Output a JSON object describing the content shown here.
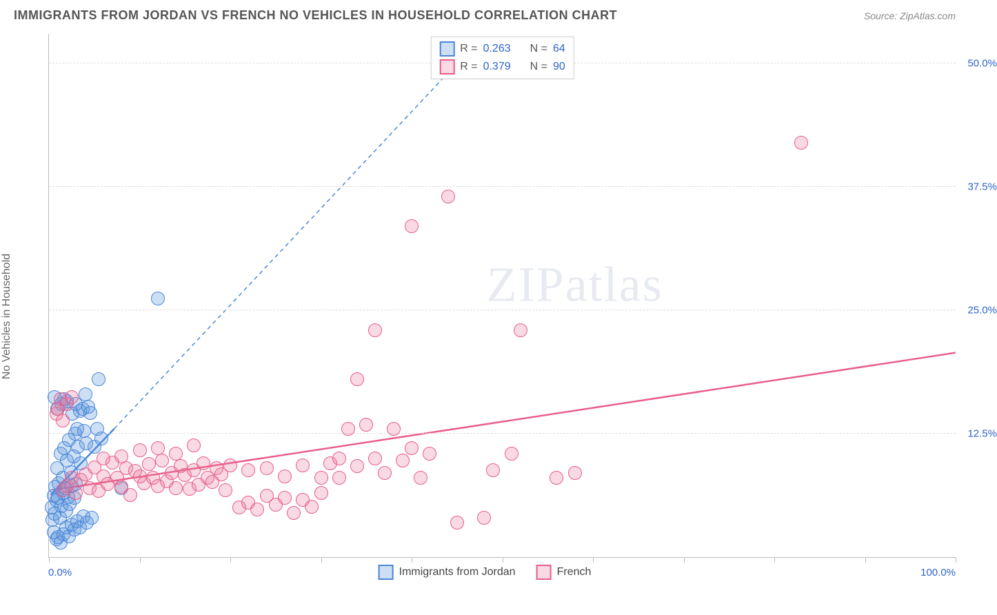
{
  "title": "IMMIGRANTS FROM JORDAN VS FRENCH NO VEHICLES IN HOUSEHOLD CORRELATION CHART",
  "source_label": "Source: ",
  "source_name": "ZipAtlas.com",
  "ylabel": "No Vehicles in Household",
  "watermark_a": "ZIP",
  "watermark_b": "atlas",
  "chart": {
    "type": "scatter",
    "xlim": [
      0,
      100
    ],
    "ylim": [
      0,
      53
    ],
    "xticks_pct": [
      0,
      10,
      20,
      30,
      40,
      50,
      60,
      70,
      80,
      90,
      100
    ],
    "ygrid": [
      {
        "v": 12.5,
        "label": "12.5%"
      },
      {
        "v": 25.0,
        "label": "25.0%"
      },
      {
        "v": 37.5,
        "label": "37.5%"
      },
      {
        "v": 50.0,
        "label": "50.0%"
      }
    ],
    "xlabel_min": "0.0%",
    "xlabel_max": "100.0%",
    "xlabel_color": "#2e63c9",
    "ylabel_color": "#2e63c9",
    "background_color": "#ffffff",
    "grid_color": "#dddddd",
    "point_radius": 10,
    "point_opacity": 0.35,
    "series": [
      {
        "name": "Immigrants from Jordan",
        "color": "#4a86d8",
        "fill": "rgba(90,150,220,0.30)",
        "stroke": "#4a86d8",
        "r_value": "0.263",
        "n_value": "64",
        "trend": {
          "x1": 0.2,
          "y1": 6.3,
          "x2": 7.2,
          "y2": 13.0,
          "dash_x2": 45,
          "dash_y2": 50,
          "width": 2.5
        },
        "points": [
          [
            0.3,
            5.0
          ],
          [
            0.4,
            3.8
          ],
          [
            0.5,
            6.2
          ],
          [
            0.6,
            4.4
          ],
          [
            0.7,
            7.1
          ],
          [
            0.8,
            5.7
          ],
          [
            0.9,
            9.0
          ],
          [
            1.0,
            6.0
          ],
          [
            1.1,
            7.5
          ],
          [
            1.2,
            4.0
          ],
          [
            1.3,
            10.5
          ],
          [
            1.4,
            5.2
          ],
          [
            1.5,
            8.0
          ],
          [
            1.6,
            6.5
          ],
          [
            1.7,
            11.0
          ],
          [
            1.8,
            7.0
          ],
          [
            1.9,
            4.7
          ],
          [
            2.0,
            9.8
          ],
          [
            2.1,
            6.1
          ],
          [
            2.2,
            11.9
          ],
          [
            2.3,
            5.4
          ],
          [
            2.4,
            8.6
          ],
          [
            2.5,
            7.2
          ],
          [
            2.6,
            14.5
          ],
          [
            2.7,
            10.2
          ],
          [
            2.8,
            6.0
          ],
          [
            2.9,
            12.5
          ],
          [
            3.0,
            7.4
          ],
          [
            3.1,
            13.0
          ],
          [
            3.2,
            11.2
          ],
          [
            3.4,
            14.8
          ],
          [
            3.5,
            9.5
          ],
          [
            3.7,
            15.0
          ],
          [
            3.9,
            12.8
          ],
          [
            4.1,
            11.5
          ],
          [
            4.3,
            15.2
          ],
          [
            4.6,
            14.6
          ],
          [
            5.0,
            11.2
          ],
          [
            5.3,
            13.0
          ],
          [
            5.8,
            12.0
          ],
          [
            0.5,
            2.5
          ],
          [
            0.8,
            1.8
          ],
          [
            1.0,
            2.0
          ],
          [
            1.3,
            1.5
          ],
          [
            1.6,
            2.3
          ],
          [
            1.9,
            3.0
          ],
          [
            2.2,
            2.1
          ],
          [
            2.5,
            3.3
          ],
          [
            2.8,
            2.8
          ],
          [
            3.1,
            3.6
          ],
          [
            3.4,
            3.0
          ],
          [
            3.8,
            4.1
          ],
          [
            4.2,
            3.5
          ],
          [
            4.7,
            4.0
          ],
          [
            1.4,
            15.5
          ],
          [
            2.0,
            15.8
          ],
          [
            0.6,
            16.2
          ],
          [
            0.9,
            15.0
          ],
          [
            1.7,
            16.0
          ],
          [
            12.0,
            26.2
          ],
          [
            5.5,
            18.0
          ],
          [
            4.0,
            16.5
          ],
          [
            3.0,
            15.5
          ],
          [
            8.0,
            7.0
          ]
        ]
      },
      {
        "name": "French",
        "color": "#e85d8a",
        "fill": "rgba(235,120,155,0.28)",
        "stroke": "#e85d8a",
        "r_value": "0.379",
        "n_value": "90",
        "trend": {
          "x1": 0.5,
          "y1": 6.8,
          "x2": 100,
          "y2": 20.7,
          "width": 2.5
        },
        "points": [
          [
            1.5,
            6.8
          ],
          [
            2.0,
            7.2
          ],
          [
            2.5,
            8.0
          ],
          [
            3.0,
            6.5
          ],
          [
            3.5,
            7.8
          ],
          [
            4.0,
            8.4
          ],
          [
            4.5,
            7.0
          ],
          [
            5.0,
            9.1
          ],
          [
            5.5,
            6.7
          ],
          [
            6.0,
            8.2
          ],
          [
            6.5,
            7.4
          ],
          [
            7.0,
            9.6
          ],
          [
            7.5,
            8.0
          ],
          [
            8.0,
            7.1
          ],
          [
            8.5,
            9.0
          ],
          [
            9.0,
            6.3
          ],
          [
            9.5,
            8.7
          ],
          [
            10.0,
            8.2
          ],
          [
            10.5,
            7.5
          ],
          [
            11.0,
            9.4
          ],
          [
            11.5,
            8.0
          ],
          [
            12.0,
            7.2
          ],
          [
            12.5,
            9.8
          ],
          [
            13.0,
            7.7
          ],
          [
            13.5,
            8.5
          ],
          [
            14.0,
            7.0
          ],
          [
            14.5,
            9.2
          ],
          [
            15.0,
            8.3
          ],
          [
            15.5,
            6.9
          ],
          [
            16.0,
            8.8
          ],
          [
            16.5,
            7.3
          ],
          [
            17.0,
            9.5
          ],
          [
            17.5,
            8.0
          ],
          [
            18.0,
            7.6
          ],
          [
            18.5,
            9.0
          ],
          [
            19.0,
            8.4
          ],
          [
            19.5,
            6.8
          ],
          [
            20.0,
            9.3
          ],
          [
            21.0,
            5.0
          ],
          [
            22.0,
            5.5
          ],
          [
            23.0,
            4.8
          ],
          [
            24.0,
            6.2
          ],
          [
            25.0,
            5.3
          ],
          [
            26.0,
            6.0
          ],
          [
            27.0,
            4.5
          ],
          [
            28.0,
            5.8
          ],
          [
            29.0,
            5.1
          ],
          [
            30.0,
            6.5
          ],
          [
            31.0,
            9.5
          ],
          [
            32.0,
            8.0
          ],
          [
            33.0,
            13.0
          ],
          [
            34.0,
            9.2
          ],
          [
            35.0,
            13.4
          ],
          [
            36.0,
            10.0
          ],
          [
            37.0,
            8.5
          ],
          [
            38.0,
            13.0
          ],
          [
            39.0,
            9.8
          ],
          [
            40.0,
            11.0
          ],
          [
            41.0,
            8.0
          ],
          [
            42.0,
            10.5
          ],
          [
            22.0,
            8.8
          ],
          [
            24.0,
            9.0
          ],
          [
            26.0,
            8.2
          ],
          [
            28.0,
            9.3
          ],
          [
            30.0,
            8.0
          ],
          [
            32.0,
            10.0
          ],
          [
            34.0,
            18.0
          ],
          [
            36.0,
            23.0
          ],
          [
            44.0,
            36.5
          ],
          [
            45.0,
            3.5
          ],
          [
            48.0,
            4.0
          ],
          [
            49.0,
            8.8
          ],
          [
            40.0,
            33.5
          ],
          [
            52.0,
            23.0
          ],
          [
            56.0,
            8.0
          ],
          [
            58.0,
            8.5
          ],
          [
            51.0,
            10.5
          ],
          [
            83.0,
            42.0
          ],
          [
            1.0,
            15.0
          ],
          [
            1.3,
            16.0
          ],
          [
            0.8,
            14.5
          ],
          [
            1.5,
            13.8
          ],
          [
            2.0,
            15.5
          ],
          [
            2.5,
            16.2
          ],
          [
            6.0,
            10.0
          ],
          [
            8.0,
            10.2
          ],
          [
            10.0,
            10.8
          ],
          [
            12.0,
            11.0
          ],
          [
            14.0,
            10.5
          ],
          [
            16.0,
            11.3
          ]
        ]
      }
    ],
    "legend_top": {
      "r_label": "R =",
      "n_label": "N =",
      "value_color": "#2e63c9",
      "text_color": "#555555"
    },
    "legend_bottom_color": "#444444"
  }
}
